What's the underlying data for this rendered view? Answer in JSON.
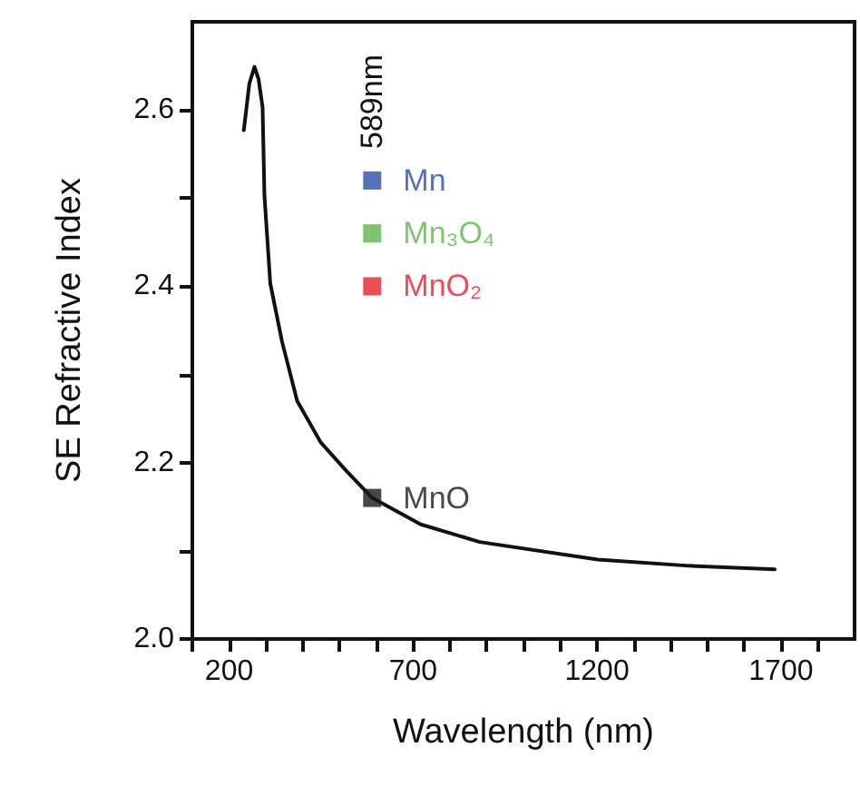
{
  "chart_data": {
    "type": "line",
    "xlabel": "Wavelength (nm)",
    "ylabel": "SE Refractive Index",
    "xlim": [
      100,
      1900
    ],
    "ylim": [
      2.0,
      2.7
    ],
    "xticks": [
      {
        "value": 100,
        "label": null
      },
      200,
      {
        "value": 300,
        "label": null
      },
      {
        "value": 400,
        "label": null
      },
      {
        "value": 500,
        "label": null
      },
      {
        "value": 600,
        "label": null
      },
      700,
      {
        "value": 800,
        "label": null
      },
      {
        "value": 900,
        "label": null
      },
      {
        "value": 1000,
        "label": null
      },
      {
        "value": 1100,
        "label": null
      },
      1200,
      {
        "value": 1300,
        "label": null
      },
      {
        "value": 1400,
        "label": null
      },
      {
        "value": 1500,
        "label": null
      },
      {
        "value": 1600,
        "label": null
      },
      1700,
      {
        "value": 1800,
        "label": null
      }
    ],
    "yticks": [
      {
        "value": 2.0,
        "label": "2.0"
      },
      {
        "value": 2.1,
        "label": null
      },
      2.2,
      {
        "value": 2.3,
        "label": null
      },
      2.4,
      {
        "value": 2.5,
        "label": null
      },
      2.6
    ],
    "grid": false,
    "legend": false,
    "marker": "square",
    "series": [
      {
        "color": "#111111",
        "marker": "none",
        "line_style": "solid",
        "x": [
          240,
          255,
          269,
          280,
          291,
          296,
          312,
          344,
          385,
          449,
          520,
          589,
          721,
          881,
          1202,
          1450,
          1683
        ],
        "values": [
          2.577,
          2.63,
          2.649,
          2.635,
          2.603,
          2.503,
          2.403,
          2.337,
          2.27,
          2.223,
          2.19,
          2.16,
          2.13,
          2.11,
          2.09,
          2.083,
          2.079
        ]
      },
      {
        "type": "scatter",
        "name": "Mn",
        "color": "#2b4fa8",
        "x": [
          589
        ],
        "values": [
          2.52
        ]
      },
      {
        "type": "scatter",
        "name": "Mn₃O₄",
        "color": "#5bb94a",
        "x": [
          589
        ],
        "values": [
          2.46
        ]
      },
      {
        "type": "scatter",
        "name": "MnO₂",
        "color": "#e8202a",
        "x": [
          589
        ],
        "values": [
          2.4
        ]
      },
      {
        "type": "scatter",
        "name": "MnO",
        "color": "#1a1a1a",
        "x": [
          589
        ],
        "values": [
          2.16
        ]
      }
    ],
    "annotations": [
      "589nm"
    ]
  }
}
